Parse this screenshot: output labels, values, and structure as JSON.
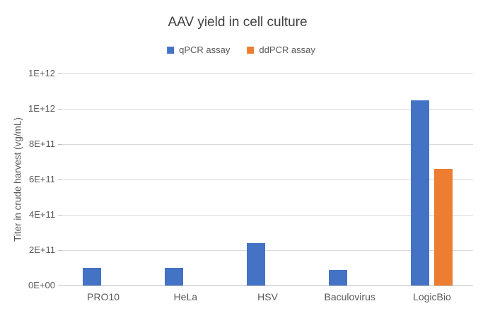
{
  "chart_data": {
    "type": "bar",
    "title": "AAV yield in cell culture",
    "categories": [
      "PRO10",
      "HeLa",
      "HSV",
      "Baculovirus",
      "LogicBio"
    ],
    "series": [
      {
        "name": "qPCR assay",
        "color": "#4472C4",
        "values": [
          100000000000.0,
          100000000000.0,
          240000000000.0,
          90000000000.0,
          1050000000000.0
        ]
      },
      {
        "name": "ddPCR assay",
        "color": "#ED7D31",
        "values": [
          0,
          0,
          0,
          0,
          660000000000.0
        ]
      }
    ],
    "xlabel": "",
    "ylabel": "Titer in crude harvest (vg/mL)",
    "ylim": [
      0,
      1200000000000.0
    ],
    "ytick_interval": 200000000000.0,
    "ytick_labels": [
      "0E+00",
      "2E+11",
      "4E+11",
      "6E+11",
      "8E+11",
      "1E+12",
      "1E+12"
    ],
    "grid": true,
    "legend_position": "top"
  },
  "colors": {
    "qpcr_blue": "#4472C4",
    "ddpcr_orange": "#ED7D31",
    "gridline": "#d9d9d9",
    "axis_line": "#bfbfbf",
    "label_text": "#595959",
    "title_text": "#404040",
    "background": "#ffffff"
  }
}
